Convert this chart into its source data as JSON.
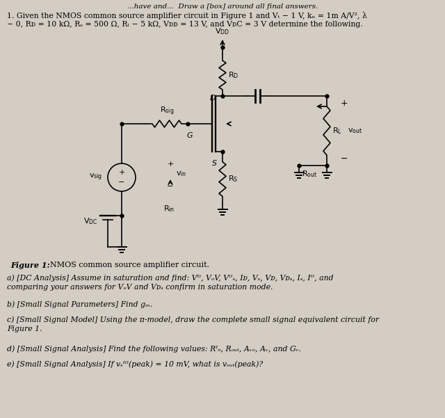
{
  "bg_color": "#d4cdc4",
  "top_text": "...have and...  Draw a [box] around all final answers.",
  "prob1": "1. Given the NMOS common source amplifier circuit in Figure 1 and V",
  "prob1b": " = 1 V, k",
  "prob1c": " = 1m A/V",
  "prob2": "= 0, R",
  "prob2b": " = 10 kΩ, R",
  "prob2c": " = 500 Ω, R",
  "prob2d": " = 5 kΩ, V",
  "prob2e": " = 13 V, and V",
  "prob2f": " = 3 V determine the following.",
  "fig_cap": "Figure 1: NMOS common source amplifier circuit.",
  "part_a1": "a) [DC Analysis] Assume in saturation and find: V",
  "part_a2": ", V",
  "part_a3": ", V",
  "part_a4": ", I",
  "part_a5": ", V",
  "part_a6": ", V",
  "part_a7": ", V",
  "part_a8": ", I",
  "part_a9": ", I",
  "part_a10": ", and",
  "part_a_line2": "comparing your answers for V",
  "part_b": "b) [Small Signal Parameters] Find g",
  "part_c1": "c) [Small Signal Model] Using the π-model, draw the complete small signal equivalent circuit for",
  "part_c2": "Figure 1.",
  "part_d": "d) [Small Signal Analysis] Find the following values: R",
  "part_e1": "e) [Small Signal Analysis] If v",
  "part_e2": "(peak) = 10 mV, what is v",
  "part_e3": "(peak)?"
}
